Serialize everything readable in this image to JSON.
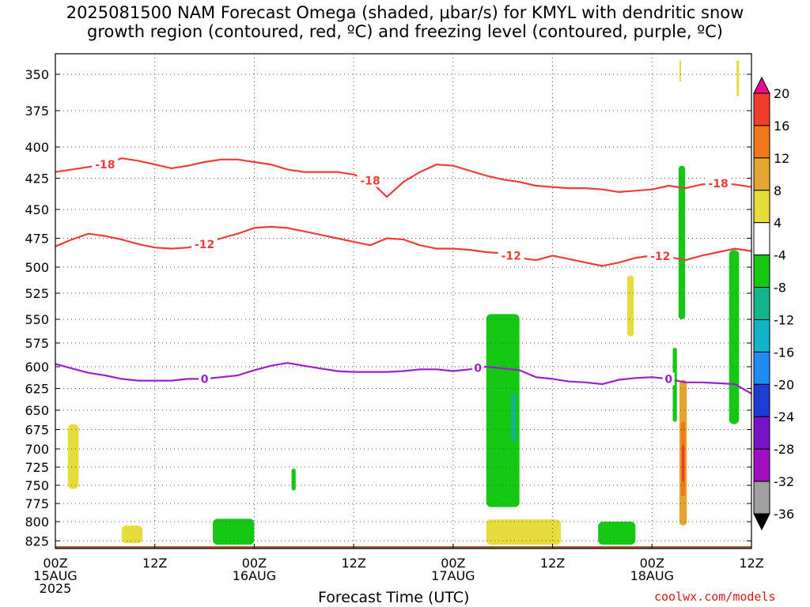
{
  "title": {
    "line1": "2025081500 NAM Forecast Omega (shaded, μbar/s) for KMYL with dendritic snow",
    "line2": "growth region (contoured, red, ºC) and freezing level (contoured, purple, ºC)"
  },
  "watermark": "coolwx.com/models",
  "chart_data": {
    "type": "contour",
    "title": "2025081500 NAM Forecast Omega (shaded, μbar/s) for KMYL with dendritic snow growth region (contoured, red, ºC) and freezing level (contoured, purple, ºC)",
    "xlabel": "Forecast Time (UTC)",
    "ylabel": "",
    "x_unit": "forecast hour",
    "xlim": [
      0,
      84
    ],
    "ylim_hPa": [
      325,
      835
    ],
    "y_scale": "pressure (hPa), increasing downward",
    "grid": true,
    "y_ticks": [
      350,
      375,
      400,
      425,
      450,
      475,
      500,
      525,
      550,
      575,
      600,
      625,
      650,
      675,
      700,
      725,
      750,
      775,
      800,
      825
    ],
    "x_ticks": [
      {
        "hour": 0,
        "label": "00Z",
        "date": "15AUG",
        "year": "2025"
      },
      {
        "hour": 12,
        "label": "12Z"
      },
      {
        "hour": 24,
        "label": "00Z",
        "date": "16AUG"
      },
      {
        "hour": 36,
        "label": "12Z"
      },
      {
        "hour": 48,
        "label": "00Z",
        "date": "17AUG"
      },
      {
        "hour": 60,
        "label": "12Z"
      },
      {
        "hour": 72,
        "label": "00Z",
        "date": "18AUG"
      },
      {
        "hour": 84,
        "label": "12Z"
      }
    ],
    "colorbar": {
      "labels": [
        "20",
        "16",
        "12",
        "8",
        "4",
        "-4",
        "-8",
        "-12",
        "-16",
        "-20",
        "-24",
        "-28",
        "-32",
        "-36"
      ],
      "colors": [
        "#e8108a",
        "#f03c2a",
        "#f07818",
        "#e6a531",
        "#e6dc3c",
        "#ffffff",
        "#14c814",
        "#14b48c",
        "#14b4c8",
        "#1e8cf0",
        "#1e3cd2",
        "#7814c8",
        "#a010c0",
        "#a0a0a0",
        "#000000"
      ]
    },
    "series": [
      {
        "name": "-18",
        "kind": "contour",
        "color": "#f03c3c",
        "x": [
          0,
          2,
          4,
          6,
          8,
          10,
          12,
          14,
          16,
          18,
          20,
          22,
          24,
          26,
          28,
          30,
          32,
          34,
          36,
          38,
          40,
          42,
          44,
          46,
          48,
          50,
          52,
          54,
          56,
          58,
          60,
          62,
          64,
          66,
          68,
          70,
          72,
          74,
          76,
          78,
          80,
          82,
          84
        ],
        "y": [
          420,
          418,
          416,
          414,
          409,
          411,
          414,
          417,
          415,
          412,
          410,
          410,
          412,
          414,
          418,
          420,
          420,
          420,
          422,
          427,
          440,
          428,
          420,
          414,
          415,
          419,
          423,
          426,
          428,
          431,
          432,
          433,
          433,
          434,
          436,
          435,
          434,
          431,
          433,
          430,
          429,
          430,
          432
        ]
      },
      {
        "name": "-12",
        "kind": "contour",
        "color": "#f03c3c",
        "x": [
          0,
          2,
          4,
          6,
          8,
          10,
          12,
          14,
          16,
          18,
          20,
          22,
          24,
          26,
          28,
          30,
          32,
          34,
          36,
          38,
          40,
          42,
          44,
          46,
          48,
          50,
          52,
          54,
          56,
          58,
          60,
          62,
          64,
          66,
          68,
          70,
          72,
          74,
          76,
          78,
          80,
          82,
          84
        ],
        "y": [
          482,
          476,
          471,
          473,
          476,
          480,
          483,
          484,
          483,
          480,
          475,
          471,
          466,
          465,
          466,
          469,
          472,
          475,
          478,
          481,
          475,
          476,
          481,
          484,
          484,
          485,
          487,
          488,
          492,
          494,
          490,
          493,
          496,
          499,
          496,
          492,
          490,
          491,
          494,
          490,
          487,
          484,
          486
        ]
      },
      {
        "name": "0",
        "kind": "contour",
        "color": "#9b20c8",
        "x": [
          0,
          2,
          4,
          6,
          8,
          10,
          12,
          14,
          16,
          18,
          20,
          22,
          24,
          26,
          28,
          30,
          32,
          34,
          36,
          38,
          40,
          42,
          44,
          46,
          48,
          50,
          52,
          54,
          56,
          58,
          60,
          62,
          64,
          66,
          68,
          70,
          72,
          74,
          76,
          78,
          80,
          82,
          84
        ],
        "y": [
          597,
          602,
          607,
          610,
          614,
          616,
          616,
          616,
          614,
          614,
          612,
          610,
          604,
          599,
          596,
          599,
          602,
          605,
          606,
          606,
          606,
          605,
          603,
          603,
          605,
          603,
          600,
          602,
          604,
          612,
          614,
          617,
          618,
          620,
          615,
          613,
          612,
          614,
          618,
          618,
          619,
          620,
          631
        ]
      }
    ],
    "shaded_regions": [
      {
        "category": "4 to 8",
        "color": "#e6dc3c",
        "hours": [
          1.5,
          2.8
        ],
        "p_range": [
          668,
          755
        ]
      },
      {
        "category": "4 to 8",
        "color": "#e6dc3c",
        "hours": [
          8.0,
          10.5
        ],
        "p_range": [
          805,
          828
        ]
      },
      {
        "category": "-4 to -8",
        "color": "#14c814",
        "hours": [
          19.0,
          24.0
        ],
        "p_range": [
          796,
          830
        ]
      },
      {
        "category": "-4 to -8",
        "color": "#14c814",
        "hours": [
          28.5,
          29.0
        ],
        "p_range": [
          727,
          757
        ]
      },
      {
        "category": "-4 to -8",
        "color": "#14c814",
        "hours": [
          52.0,
          56.0
        ],
        "p_range": [
          545,
          780
        ]
      },
      {
        "category": "-8 to -12",
        "color": "#14b48c",
        "hours": [
          55.0,
          55.6
        ],
        "p_range": [
          630,
          690
        ]
      },
      {
        "category": "4 to 8",
        "color": "#e6dc3c",
        "hours": [
          52.0,
          61.0
        ],
        "p_range": [
          797,
          830
        ]
      },
      {
        "category": "-4 to -8",
        "color": "#14c814",
        "hours": [
          65.5,
          70.0
        ],
        "p_range": [
          800,
          830
        ]
      },
      {
        "category": "4 to 8",
        "color": "#e6dc3c",
        "hours": [
          69.0,
          69.8
        ],
        "p_range": [
          508,
          568
        ]
      },
      {
        "category": "-4 to -8",
        "color": "#14c814",
        "hours": [
          75.2,
          76.0
        ],
        "p_range": [
          415,
          550
        ]
      },
      {
        "category": "-4 to -8",
        "color": "#14c814",
        "hours": [
          74.5,
          75.0
        ],
        "p_range": [
          580,
          665
        ]
      },
      {
        "category": "4 to 12",
        "color": "#e6a531",
        "hours": [
          75.3,
          76.2
        ],
        "p_range": [
          615,
          805
        ]
      },
      {
        "category": "12 to 16",
        "color": "#f07818",
        "hours": [
          75.5,
          76.0
        ],
        "p_range": [
          665,
          765
        ]
      },
      {
        "category": "16 to 20",
        "color": "#f03c2a",
        "hours": [
          75.6,
          75.9
        ],
        "p_range": [
          695,
          745
        ]
      },
      {
        "category": "4 to 8",
        "color": "#e6dc3c",
        "hours": [
          75.3,
          75.5
        ],
        "p_range": [
          333,
          355
        ]
      },
      {
        "category": "-4 to -8",
        "color": "#14c814",
        "hours": [
          81.3,
          82.5
        ],
        "p_range": [
          485,
          668
        ]
      },
      {
        "category": "4 to 8",
        "color": "#e6dc3c",
        "hours": [
          82.2,
          82.5
        ],
        "p_range": [
          333,
          365
        ]
      }
    ],
    "ground_layer": {
      "color": "#a05a2c",
      "p_top": 832
    }
  }
}
